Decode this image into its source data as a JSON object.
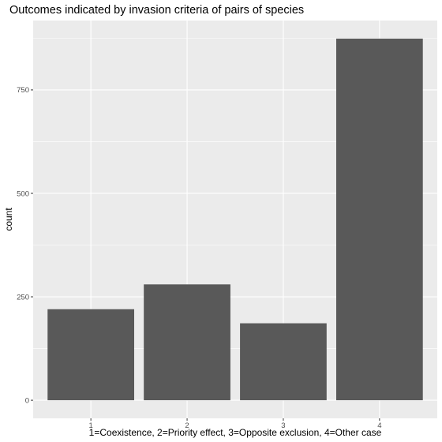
{
  "chart_data": {
    "type": "bar",
    "title": "Outcomes indicated by invasion criteria of pairs of species",
    "xlabel": "1=Coexistence, 2=Priority effect, 3=Opposite exclusion, 4=Other case",
    "ylabel": "count",
    "categories": [
      "1",
      "2",
      "3",
      "4"
    ],
    "values": [
      220,
      280,
      186,
      874
    ],
    "ylim": [
      -43.7,
      917.7
    ],
    "yticks": [
      0,
      250,
      500,
      750
    ],
    "ytick_labels": [
      "0",
      "250",
      "500",
      "750"
    ],
    "grid": true,
    "colors": {
      "panel_background": "#ebebeb",
      "grid_major": "#ffffff",
      "bar_fill": "#595959",
      "tick_color": "#333333"
    }
  }
}
